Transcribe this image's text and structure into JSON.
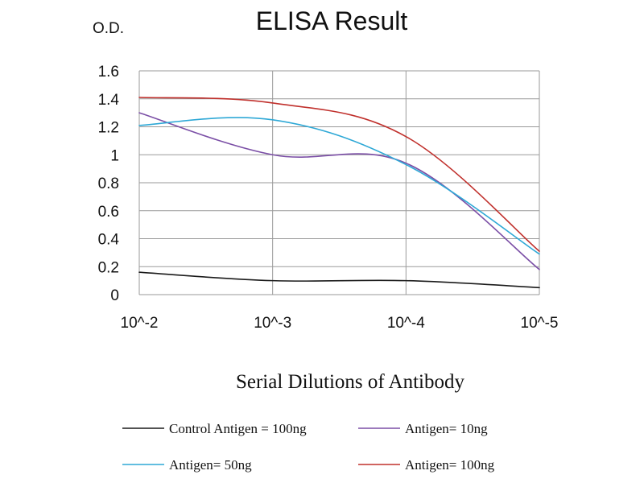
{
  "chart_data": {
    "type": "line",
    "title": "ELISA Result",
    "ylabel": "O.D.",
    "xlabel": "Serial Dilutions of Antibody",
    "categories": [
      "10^-2",
      "10^-3",
      "10^-4",
      "10^-5"
    ],
    "ylim": [
      0,
      1.6
    ],
    "yticks": [
      0,
      0.2,
      0.4,
      0.6,
      0.8,
      1,
      1.2,
      1.4,
      1.6
    ],
    "ytick_labels": [
      "0",
      "0.2",
      "0.4",
      "0.6",
      "0.8",
      "1",
      "1.2",
      "1.4",
      "1.6"
    ],
    "grid": true,
    "legend_position": "bottom",
    "series": [
      {
        "name": "Control Antigen = 100ng",
        "color": "#1a1a1a",
        "values": [
          0.16,
          0.1,
          0.1,
          0.05
        ]
      },
      {
        "name": "Antigen= 10ng",
        "color": "#7b4fa6",
        "values": [
          1.3,
          1.0,
          0.94,
          0.18
        ]
      },
      {
        "name": "Antigen= 50ng",
        "color": "#2ea8d6",
        "values": [
          1.21,
          1.25,
          0.93,
          0.29
        ]
      },
      {
        "name": "Antigen= 100ng",
        "color": "#c0302c",
        "values": [
          1.41,
          1.37,
          1.13,
          0.31
        ]
      }
    ]
  }
}
